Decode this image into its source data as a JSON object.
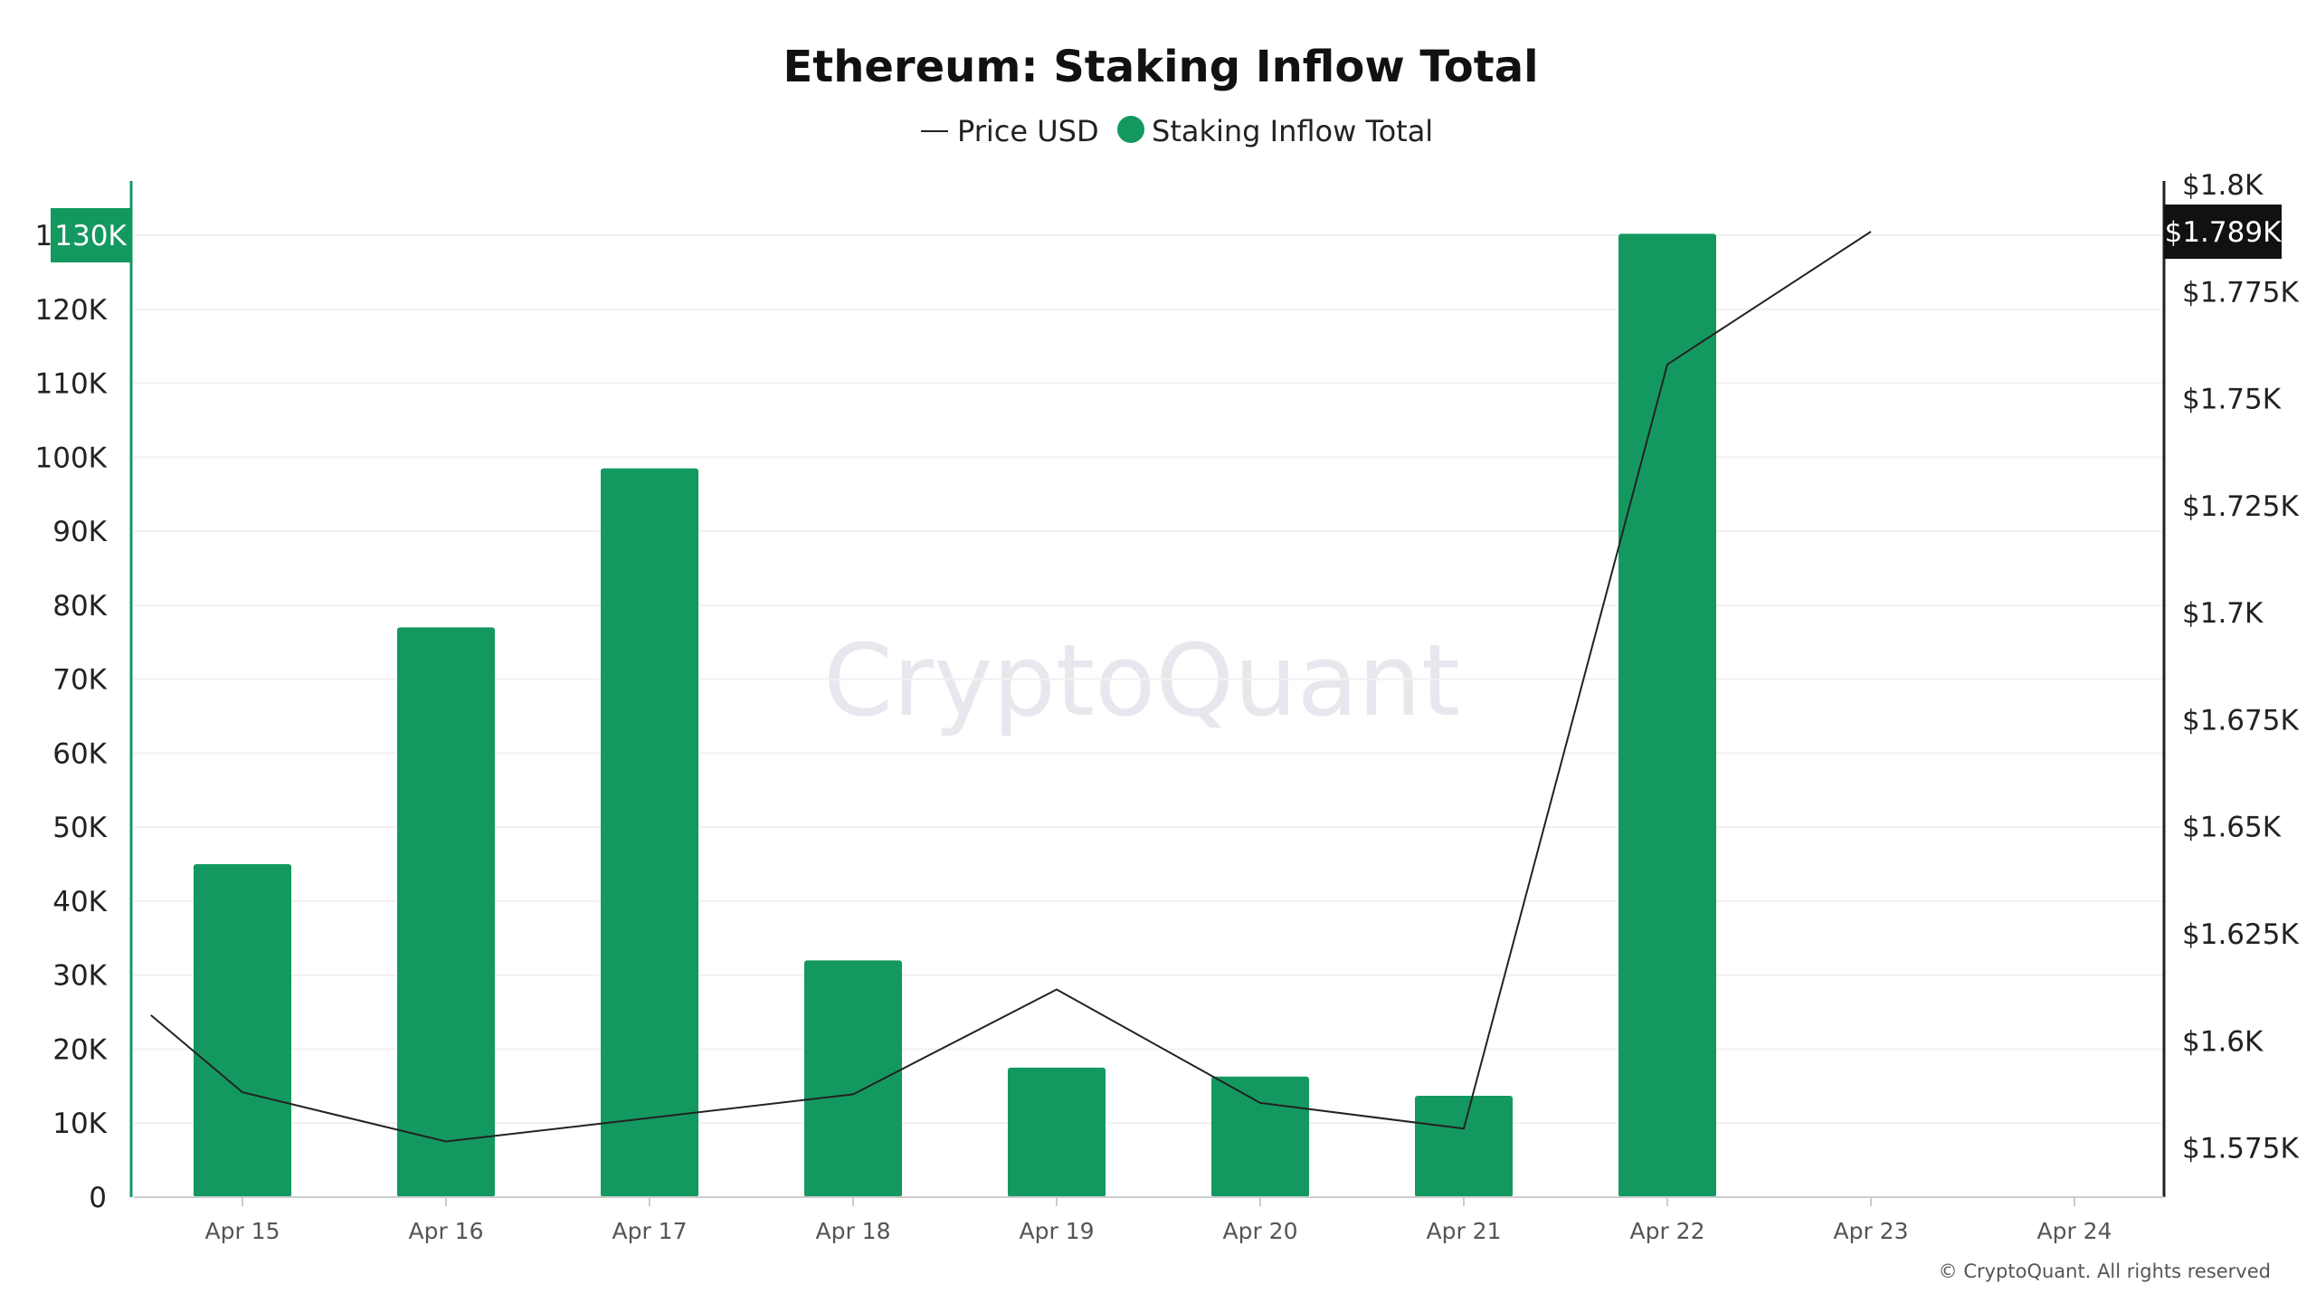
{
  "chart_data": {
    "type": "bar",
    "title": "Ethereum: Staking Inflow Total",
    "legend": [
      {
        "label": "Price USD",
        "marker": "line",
        "color": "#222222"
      },
      {
        "label": "Staking Inflow Total",
        "marker": "dot",
        "color": "#139960"
      }
    ],
    "legend_placement": "top-center",
    "categories": [
      "Apr 15",
      "Apr 16",
      "Apr 17",
      "Apr 18",
      "Apr 19",
      "Apr 20",
      "Apr 21",
      "Apr 22",
      "Apr 23",
      "Apr 24"
    ],
    "series": [
      {
        "name": "Staking Inflow Total",
        "type": "bar",
        "axis": "left",
        "color": "#139960",
        "values": [
          45000,
          77000,
          98500,
          32000,
          17500,
          16300,
          13700,
          130200,
          null,
          null
        ]
      },
      {
        "name": "Price USD",
        "type": "line",
        "axis": "right",
        "color": "#222222",
        "x": [
          14.55,
          15,
          16,
          17,
          18,
          19,
          20,
          21,
          22,
          23
        ],
        "values": [
          1606,
          1588,
          1576.5,
          1582,
          1587.5,
          1612,
          1585.5,
          1579.5,
          1758,
          1789
        ]
      }
    ],
    "y_left": {
      "min": 0,
      "max": 130000,
      "ticks": [
        0,
        10000,
        20000,
        30000,
        40000,
        50000,
        60000,
        70000,
        80000,
        90000,
        100000,
        110000,
        120000,
        130000
      ],
      "tick_labels": [
        "0",
        "10K",
        "20K",
        "30K",
        "40K",
        "50K",
        "60K",
        "70K",
        "80K",
        "90K",
        "100K",
        "110K",
        "120K",
        "130K"
      ],
      "highlight_label": "130K",
      "highlight_color": "#139960"
    },
    "y_right": {
      "min": 1563.5,
      "max": 1800,
      "ticks": [
        1575,
        1600,
        1625,
        1650,
        1675,
        1700,
        1725,
        1750,
        1775,
        1800
      ],
      "tick_labels": [
        "$1.575K",
        "$1.6K",
        "$1.625K",
        "$1.65K",
        "$1.675K",
        "$1.7K",
        "$1.725K",
        "$1.75K",
        "$1.775K",
        "$1.8K"
      ],
      "current_label": "$1.789K",
      "current_value": 1789,
      "current_color": "#111111"
    },
    "grid": true,
    "watermark": "CryptoQuant",
    "copyright": "© CryptoQuant. All rights reserved"
  }
}
